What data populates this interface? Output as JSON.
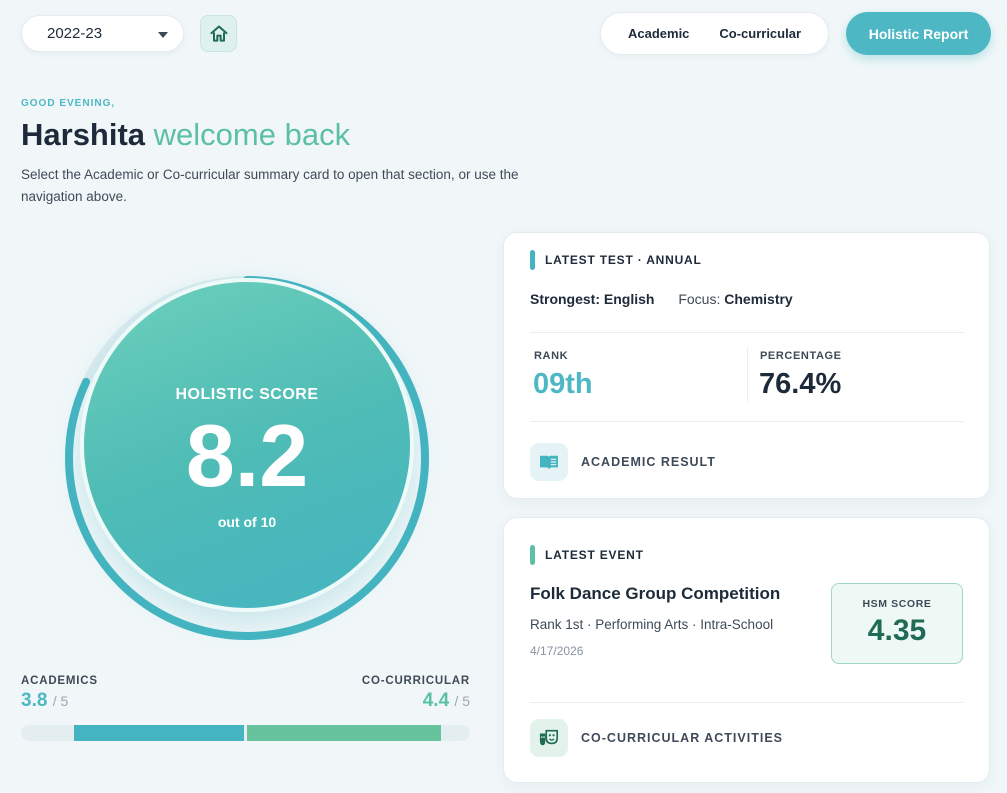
{
  "header": {
    "year": "2022-23",
    "nav_academic": "Academic",
    "nav_cocurricular": "Co-curricular",
    "holistic_report": "Holistic Report"
  },
  "greeting": {
    "salutation": "GOOD EVENING,",
    "name": "Harshita",
    "welcome": "welcome back",
    "description": "Select the Academic or Co-curricular summary card to open that section, or use the navigation above."
  },
  "score": {
    "label": "HOLISTIC SCORE",
    "value": "8.2",
    "out_of": "out of 10",
    "progress": 0.82
  },
  "split": {
    "academics_label": "ACADEMICS",
    "academics_value": "3.8",
    "academics_den": "/ 5",
    "cocurricular_label": "CO-CURRICULAR",
    "cocurricular_value": "4.4",
    "cocurricular_den": "/ 5"
  },
  "test_card": {
    "tag": "LATEST TEST · ANNUAL",
    "strongest_label": "Strongest:",
    "strongest_value": "English",
    "focus_label": "Focus:",
    "focus_value": "Chemistry",
    "rank_label": "RANK",
    "rank_value": "09th",
    "percentage_label": "PERCENTAGE",
    "percentage_value": "76.4%",
    "link": "ACADEMIC RESULT"
  },
  "event_card": {
    "tag": "LATEST EVENT",
    "title": "Folk Dance Group Competition",
    "meta": "Rank 1st · Performing Arts · Intra-School",
    "date": "4/17/2026",
    "hsm_label": "HSM SCORE",
    "hsm_value": "4.35",
    "link": "CO-CURRICULAR ACTIVITIES"
  },
  "colors": {
    "teal": "#4db8c3",
    "green": "#5cc0a6",
    "dark_green": "#1f6b55"
  }
}
